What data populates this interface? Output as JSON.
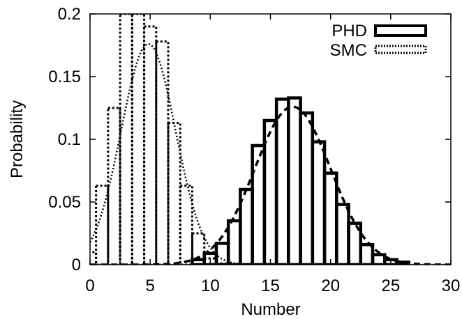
{
  "chart_data": {
    "type": "bar",
    "xlabel": "Number",
    "ylabel": "Probability",
    "xlim": [
      0,
      30
    ],
    "ylim": [
      0,
      0.2
    ],
    "x_ticks": [
      "0",
      "5",
      "10",
      "15",
      "20",
      "25",
      "30"
    ],
    "y_ticks": [
      "0",
      "0.05",
      "0.1",
      "0.15",
      "0.2"
    ],
    "grid": false,
    "legend_position": "top-right",
    "series": [
      {
        "name": "PHD",
        "style": "histogram, thick solid outline",
        "bins": [
          {
            "x": 9,
            "value": 0.004
          },
          {
            "x": 10,
            "value": 0.009
          },
          {
            "x": 11,
            "value": 0.017
          },
          {
            "x": 12,
            "value": 0.035
          },
          {
            "x": 13,
            "value": 0.06
          },
          {
            "x": 14,
            "value": 0.095
          },
          {
            "x": 15,
            "value": 0.115
          },
          {
            "x": 16,
            "value": 0.132
          },
          {
            "x": 17,
            "value": 0.133
          },
          {
            "x": 18,
            "value": 0.121
          },
          {
            "x": 19,
            "value": 0.098
          },
          {
            "x": 20,
            "value": 0.073
          },
          {
            "x": 21,
            "value": 0.048
          },
          {
            "x": 22,
            "value": 0.033
          },
          {
            "x": 23,
            "value": 0.016
          },
          {
            "x": 24,
            "value": 0.008
          },
          {
            "x": 25,
            "value": 0.004
          },
          {
            "x": 26,
            "value": 0.002
          }
        ],
        "curve": {
          "style": "dashed",
          "mean": 16.85,
          "sd": 3.16,
          "peak": 0.126
        }
      },
      {
        "name": "SMC",
        "style": "histogram, dotted outline",
        "bins": [
          {
            "x": 0,
            "value": 0.01
          },
          {
            "x": 1,
            "value": 0.063
          },
          {
            "x": 2,
            "value": 0.125
          },
          {
            "x": 3,
            "value": 0.2
          },
          {
            "x": 4,
            "value": 0.2
          },
          {
            "x": 5,
            "value": 0.19
          },
          {
            "x": 6,
            "value": 0.178
          },
          {
            "x": 7,
            "value": 0.113
          },
          {
            "x": 8,
            "value": 0.063
          },
          {
            "x": 9,
            "value": 0.025
          },
          {
            "x": 10,
            "value": 0.005
          },
          {
            "x": 11,
            "value": 0.001
          }
        ],
        "curve": {
          "style": "dotted",
          "mean": 4.85,
          "sd": 2.27,
          "peak": 0.176
        }
      }
    ]
  }
}
